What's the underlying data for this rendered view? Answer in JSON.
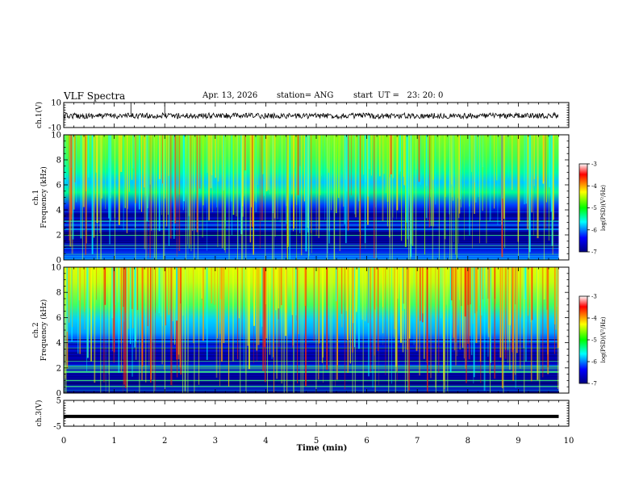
{
  "header": {
    "title": "VLF Spectra",
    "date": "Apr. 13, 2026",
    "station": "station= ANG",
    "start": "start  UT =   23: 20: 0"
  },
  "chart_data": {
    "type": "heatmap",
    "title": "VLF Spectra",
    "xlabel": "Time (min)",
    "xlim": [
      0,
      10
    ],
    "x_ticks": [
      "0",
      "1",
      "2",
      "3",
      "4",
      "5",
      "6",
      "7",
      "8",
      "9",
      "10"
    ],
    "panels": [
      {
        "name": "ch1-waveform",
        "type": "line",
        "ylabel": "ch.1(V)",
        "ylim": [
          -10,
          10
        ],
        "y_ticks": [
          "10",
          "-10"
        ],
        "trace_level_v": 0,
        "trace_end_min": 9.8
      },
      {
        "name": "ch1-spectrogram",
        "type": "heatmap",
        "ylabel_line1": "ch.1",
        "ylabel_line2": "Frequency (kHz)",
        "ylim": [
          0,
          10
        ],
        "y_ticks": [
          "0",
          "2",
          "4",
          "6",
          "8",
          "10"
        ],
        "data_end_min": 9.8
      },
      {
        "name": "ch2-spectrogram",
        "type": "heatmap",
        "ylabel_line1": "ch.2",
        "ylabel_line2": "Frequency (kHz)",
        "ylim": [
          0,
          10
        ],
        "y_ticks": [
          "0",
          "2",
          "4",
          "6",
          "8",
          "10"
        ],
        "data_end_min": 9.8
      },
      {
        "name": "ch3-waveform",
        "type": "line",
        "ylabel": "ch.3(V)",
        "ylim": [
          -5,
          5
        ],
        "y_ticks": [
          "5",
          "-5"
        ],
        "trace_level_v": -1.2,
        "trace_end_min": 9.8
      }
    ],
    "colorbar": {
      "label": "log(PSD)(V²/Hz)",
      "range": [
        -7,
        -3
      ],
      "ticks": [
        "-3",
        "-4",
        "-5",
        "-6",
        "-7"
      ],
      "colors": [
        "#ffffff",
        "#ff0000",
        "#ffff00",
        "#00ff00",
        "#00ffff",
        "#0000ff",
        "#000080"
      ]
    }
  }
}
